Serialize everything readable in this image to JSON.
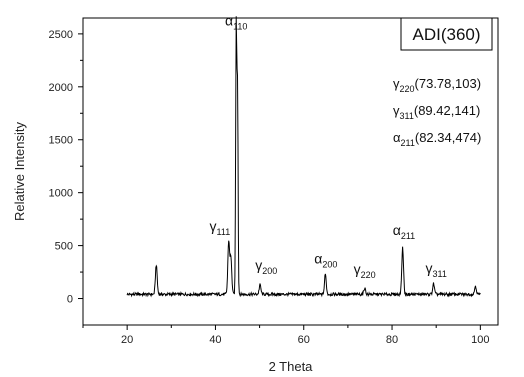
{
  "chart_data": {
    "type": "line",
    "xlabel": "2 Theta",
    "ylabel": "Relative Intensity",
    "xlim": [
      10,
      104
    ],
    "ylim": [
      -250,
      2650
    ],
    "x_ticks": [
      20,
      40,
      60,
      80,
      100
    ],
    "y_ticks": [
      0,
      500,
      1000,
      1500,
      2000,
      2500
    ],
    "series": [
      {
        "baseline": 40,
        "baseline_start": 20,
        "baseline_end": 100,
        "peaks": [
          {
            "x": 26.6,
            "y": 320
          },
          {
            "x": 43.0,
            "y": 540
          },
          {
            "x": 43.5,
            "y": 380
          },
          {
            "x": 44.7,
            "y": 2540
          },
          {
            "x": 45.0,
            "y": 1960
          },
          {
            "x": 50.1,
            "y": 130
          },
          {
            "x": 64.9,
            "y": 230
          },
          {
            "x": 73.8,
            "y": 100
          },
          {
            "x": 82.4,
            "y": 480
          },
          {
            "x": 89.4,
            "y": 140
          },
          {
            "x": 98.9,
            "y": 120
          }
        ]
      }
    ],
    "peak_annotations": [
      {
        "symbol": "α",
        "sub": "110",
        "x": 44.7,
        "y": 2580
      },
      {
        "symbol": "γ",
        "sub": "111",
        "x": 41.0,
        "y": 640
      },
      {
        "symbol": "γ",
        "sub": "200",
        "x": 51.5,
        "y": 270
      },
      {
        "symbol": "α",
        "sub": "200",
        "x": 65.0,
        "y": 330
      },
      {
        "symbol": "γ",
        "sub": "220",
        "x": 73.8,
        "y": 230
      },
      {
        "symbol": "α",
        "sub": "211",
        "x": 82.7,
        "y": 600
      },
      {
        "symbol": "γ",
        "sub": "311",
        "x": 90.0,
        "y": 240
      }
    ],
    "legend": {
      "title": "ADI(360)",
      "lines": [
        {
          "symbol": "γ",
          "sub": "220",
          "text": "(73.78,103)"
        },
        {
          "symbol": "γ",
          "sub": "311",
          "text": "(89.42,141)"
        },
        {
          "symbol": "α",
          "sub": "211",
          "text": "(82.34,474)"
        }
      ]
    },
    "grid": false,
    "line_color": "#000000"
  }
}
